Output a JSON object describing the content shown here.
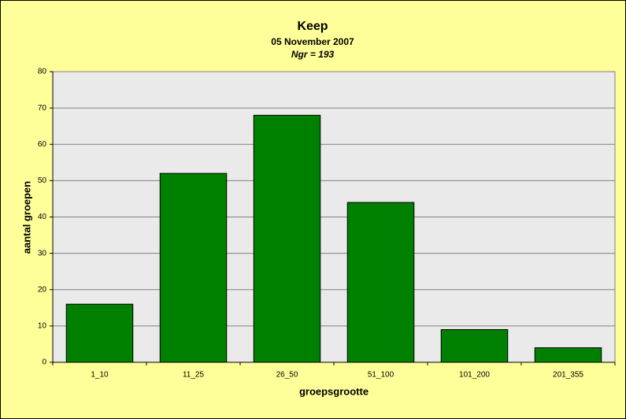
{
  "chart_data": {
    "type": "bar",
    "title": "Keep",
    "subtitle": "05 November 2007",
    "annotation": "Ngr = 193",
    "x_label": "groepsgrootte",
    "y_label": "aantal groepen",
    "categories": [
      "1_10",
      "11_25",
      "26_50",
      "51_100",
      "101_200",
      "201_355"
    ],
    "values": [
      16,
      52,
      68,
      44,
      9,
      4
    ],
    "color": "#008000",
    "ylim": [
      0,
      80
    ],
    "yticks": [
      0,
      10,
      20,
      30,
      40,
      50,
      60,
      70,
      80
    ],
    "grid": true
  }
}
